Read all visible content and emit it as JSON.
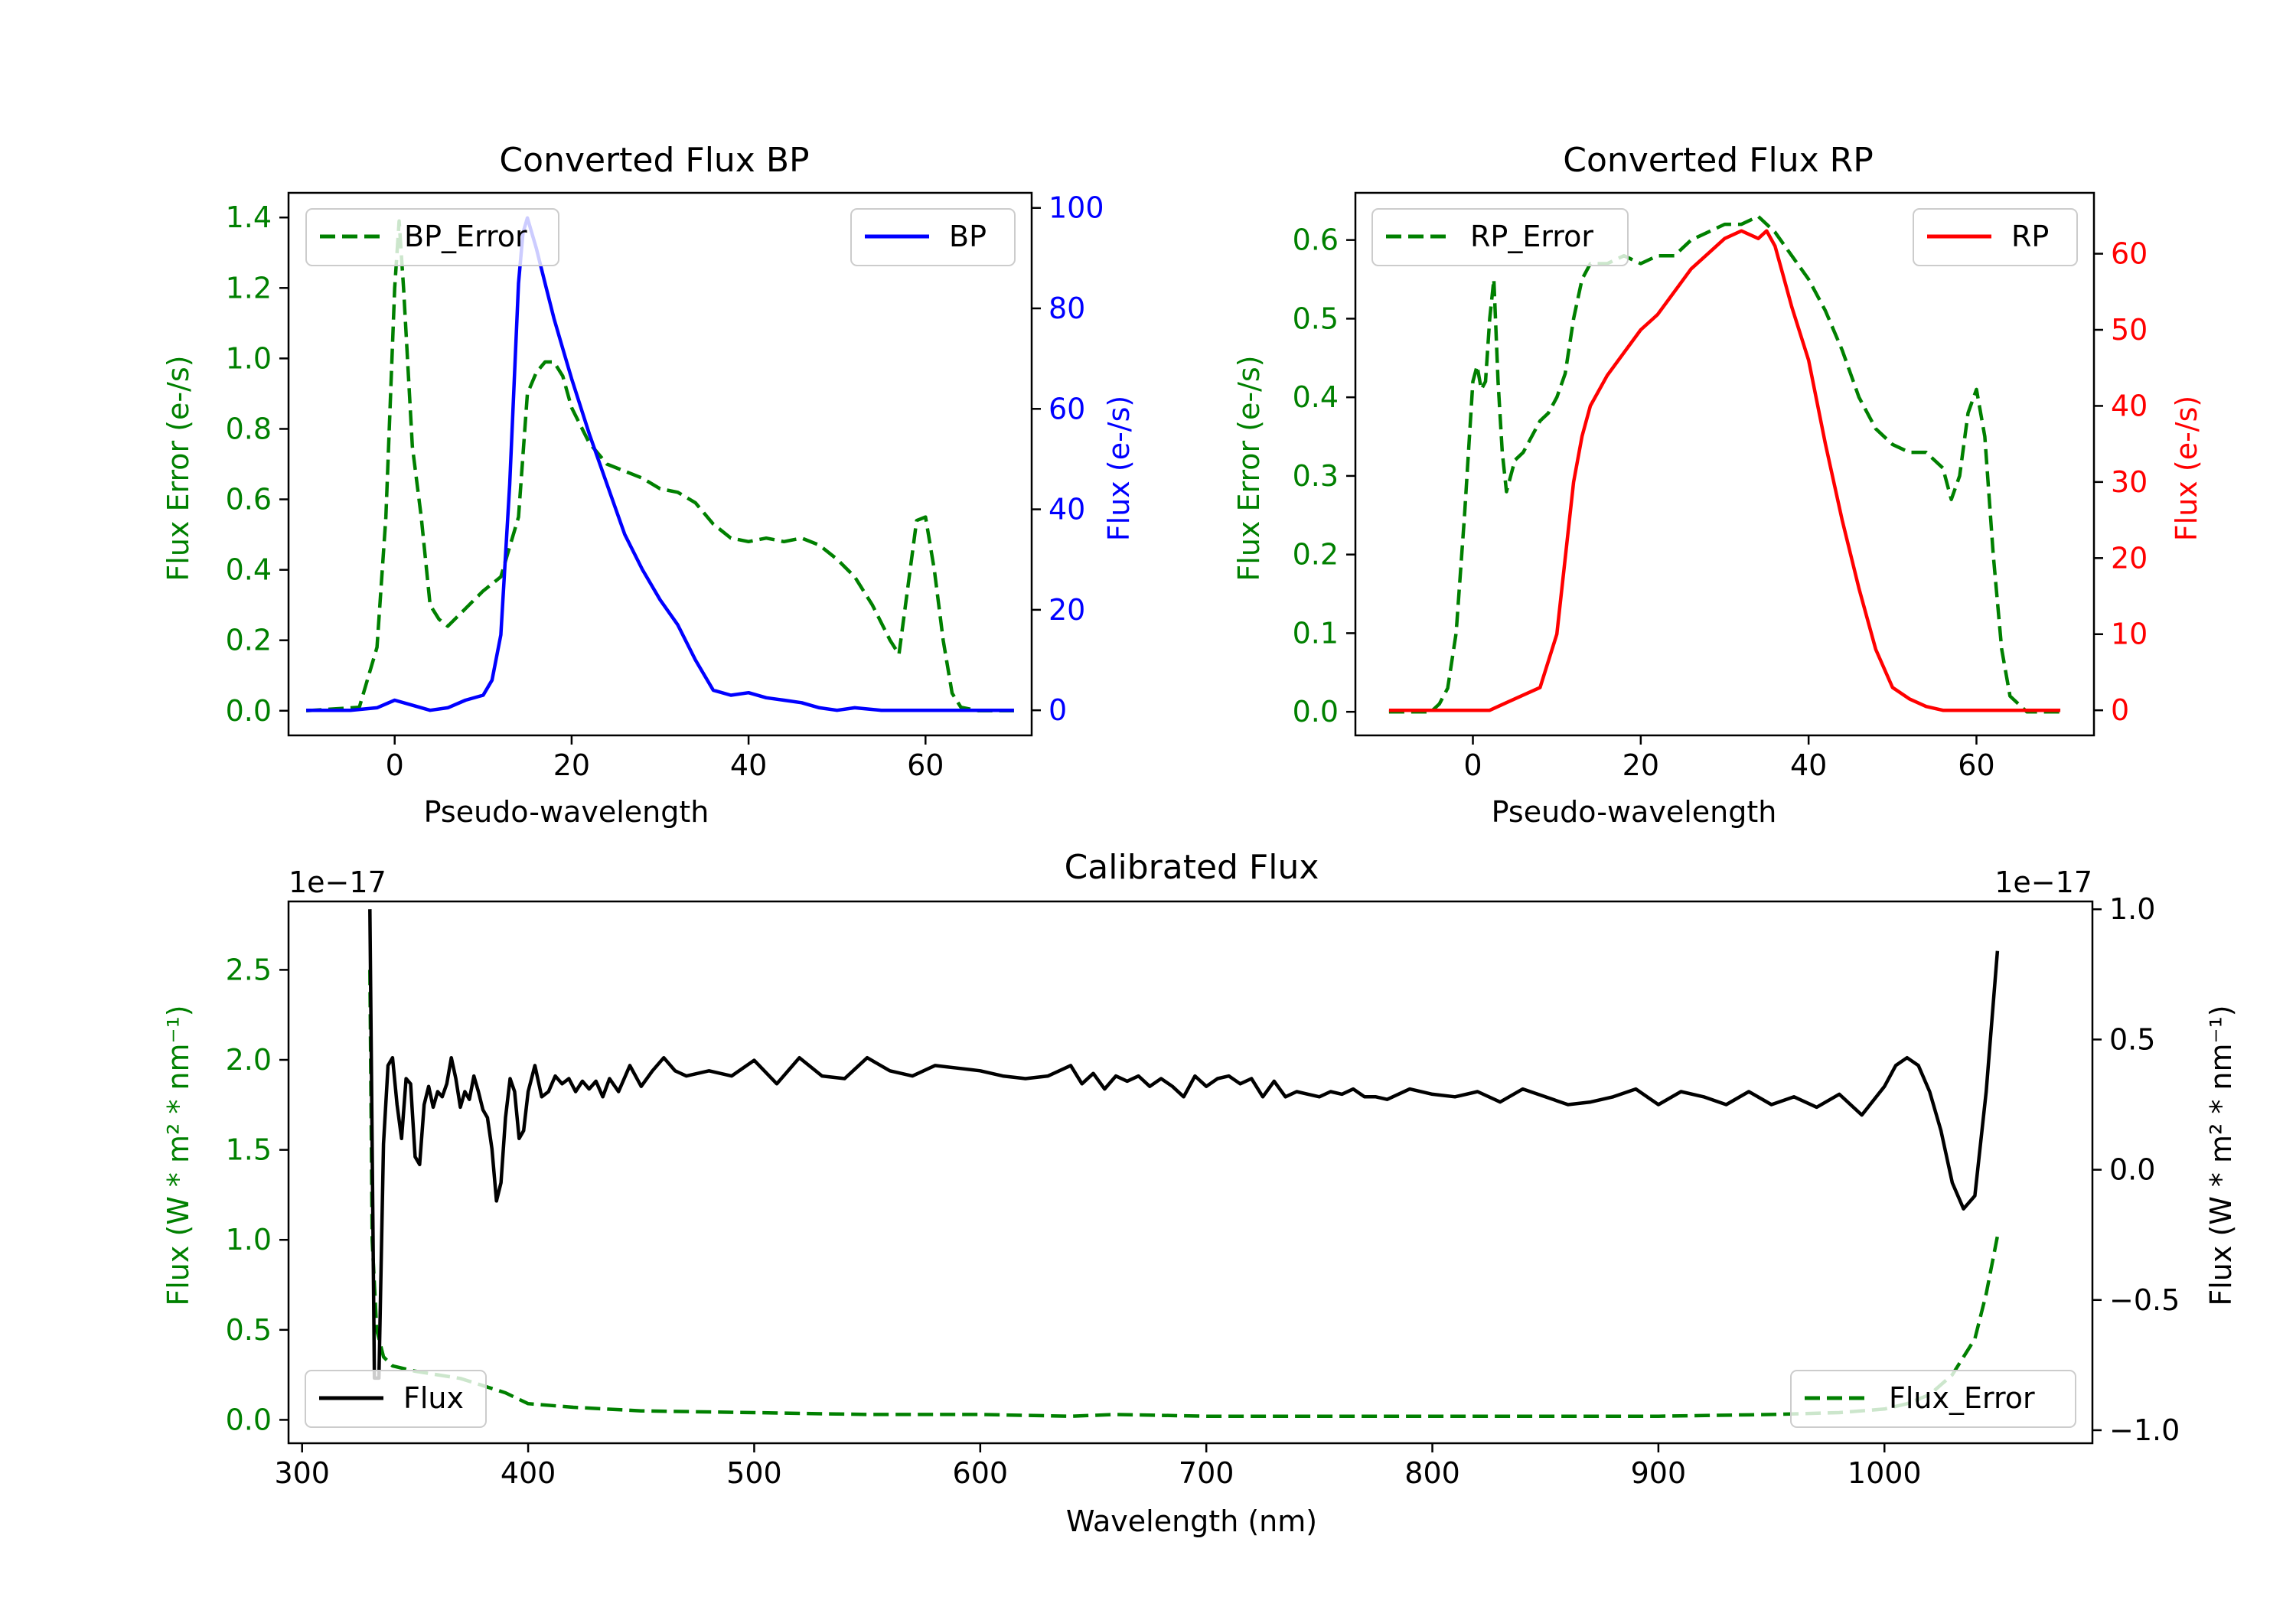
{
  "chart_data": [
    {
      "type": "line",
      "title": "Converted Flux BP",
      "xlabel": "Pseudo-wavelength",
      "xlim": [
        -12,
        72
      ],
      "xticks": [
        0,
        20,
        40,
        60
      ],
      "left_axis": {
        "label": "Flux Error (e-/s)",
        "color": "#008000",
        "ylim": [
          -0.07,
          1.47
        ],
        "ticks": [
          0.0,
          0.2,
          0.4,
          0.6,
          0.8,
          1.0,
          1.2,
          1.4
        ],
        "tick_labels": [
          "0.0",
          "0.2",
          "0.4",
          "0.6",
          "0.8",
          "1.0",
          "1.2",
          "1.4"
        ]
      },
      "right_axis": {
        "label": "Flux (e-/s)",
        "color": "#0000ff",
        "ylim": [
          -5,
          103
        ],
        "ticks": [
          0,
          20,
          40,
          60,
          80,
          100
        ],
        "tick_labels": [
          "0",
          "20",
          "40",
          "60",
          "80",
          "100"
        ]
      },
      "series": [
        {
          "name": "BP_Error",
          "axis": "left",
          "color": "#008000",
          "dashed": true,
          "x": [
            -10,
            -4,
            -2,
            -1,
            0,
            0.5,
            1,
            2,
            3,
            4,
            5,
            6,
            8,
            10,
            12,
            14,
            15,
            16,
            17,
            18,
            19,
            20,
            22,
            24,
            26,
            28,
            30,
            32,
            34,
            36,
            38,
            40,
            42,
            44,
            46,
            48,
            50,
            52,
            54,
            56,
            57,
            58,
            59,
            60,
            61,
            62,
            63,
            64,
            66,
            70
          ],
          "y": [
            0.0,
            0.01,
            0.18,
            0.55,
            1.2,
            1.39,
            1.2,
            0.75,
            0.55,
            0.3,
            0.26,
            0.24,
            0.29,
            0.34,
            0.38,
            0.55,
            0.9,
            0.96,
            0.99,
            0.99,
            0.95,
            0.86,
            0.76,
            0.7,
            0.68,
            0.66,
            0.63,
            0.62,
            0.59,
            0.53,
            0.49,
            0.48,
            0.49,
            0.48,
            0.49,
            0.47,
            0.43,
            0.38,
            0.3,
            0.2,
            0.16,
            0.35,
            0.54,
            0.55,
            0.4,
            0.2,
            0.05,
            0.01,
            0.0,
            0.0
          ]
        },
        {
          "name": "BP",
          "axis": "right",
          "color": "#0000ff",
          "dashed": false,
          "x": [
            -10,
            -5,
            -2,
            0,
            2,
            4,
            6,
            8,
            10,
            11,
            12,
            13,
            14,
            14.5,
            15,
            15.5,
            16,
            17,
            18,
            19,
            20,
            22,
            24,
            26,
            28,
            30,
            32,
            34,
            36,
            38,
            40,
            42,
            44,
            46,
            48,
            50,
            52,
            55,
            60,
            70
          ],
          "y": [
            0,
            0,
            0.5,
            2,
            1,
            0,
            0.5,
            2,
            3,
            6,
            15,
            45,
            85,
            95,
            98,
            95,
            92,
            85,
            78,
            72,
            66,
            55,
            45,
            35,
            28,
            22,
            17,
            10,
            4,
            3,
            3.5,
            2.5,
            2,
            1.5,
            0.5,
            0,
            0.5,
            0,
            0,
            0
          ]
        }
      ],
      "legends": [
        {
          "label": "BP_Error",
          "location": "upper left"
        },
        {
          "label": "BP",
          "location": "upper right"
        }
      ]
    },
    {
      "type": "line",
      "title": "Converted Flux RP",
      "xlabel": "Pseudo-wavelength",
      "xlim": [
        -14,
        74
      ],
      "xticks": [
        0,
        20,
        40,
        60
      ],
      "left_axis": {
        "label": "Flux Error (e-/s)",
        "color": "#008000",
        "ylim": [
          -0.03,
          0.66
        ],
        "ticks": [
          0.0,
          0.1,
          0.2,
          0.3,
          0.4,
          0.5,
          0.6
        ],
        "tick_labels": [
          "0.0",
          "0.1",
          "0.2",
          "0.3",
          "0.4",
          "0.5",
          "0.6"
        ]
      },
      "right_axis": {
        "label": "Flux (e-/s)",
        "color": "#ff0000",
        "ylim": [
          -3.3,
          68
        ],
        "ticks": [
          0,
          10,
          20,
          30,
          40,
          50,
          60
        ],
        "tick_labels": [
          "0",
          "10",
          "20",
          "30",
          "40",
          "50",
          "60"
        ]
      },
      "series": [
        {
          "name": "RP_Error",
          "axis": "left",
          "color": "#008000",
          "dashed": true,
          "x": [
            -10,
            -5,
            -4,
            -3,
            -2,
            -1,
            0,
            0.5,
            1,
            1.5,
            2,
            2.5,
            3,
            3.5,
            4,
            5,
            6,
            7,
            8,
            9,
            10,
            11,
            12,
            13,
            14,
            16,
            18,
            20,
            22,
            24,
            26,
            28,
            30,
            32,
            34,
            36,
            38,
            40,
            42,
            44,
            46,
            48,
            50,
            52,
            54,
            55,
            56,
            57,
            58,
            59,
            60,
            61,
            62,
            63,
            64,
            66,
            70
          ],
          "y": [
            0.0,
            0.0,
            0.01,
            0.03,
            0.1,
            0.25,
            0.42,
            0.44,
            0.41,
            0.42,
            0.5,
            0.55,
            0.42,
            0.33,
            0.28,
            0.32,
            0.33,
            0.35,
            0.37,
            0.38,
            0.4,
            0.43,
            0.5,
            0.55,
            0.57,
            0.57,
            0.58,
            0.57,
            0.58,
            0.58,
            0.6,
            0.61,
            0.62,
            0.62,
            0.63,
            0.61,
            0.58,
            0.55,
            0.51,
            0.46,
            0.4,
            0.36,
            0.34,
            0.33,
            0.33,
            0.32,
            0.31,
            0.27,
            0.3,
            0.38,
            0.41,
            0.35,
            0.2,
            0.08,
            0.02,
            0.0,
            0.0
          ]
        },
        {
          "name": "RP",
          "axis": "right",
          "color": "#ff0000",
          "dashed": false,
          "x": [
            -10,
            0,
            2,
            4,
            6,
            8,
            10,
            12,
            13,
            14,
            16,
            18,
            20,
            22,
            24,
            26,
            28,
            30,
            32,
            34,
            35,
            36,
            37,
            38,
            40,
            42,
            44,
            46,
            48,
            50,
            52,
            54,
            56,
            58,
            60,
            65,
            70
          ],
          "y": [
            0,
            0,
            0,
            1,
            2,
            3,
            10,
            30,
            36,
            40,
            44,
            47,
            50,
            52,
            55,
            58,
            60,
            62,
            63,
            62,
            63,
            61,
            57,
            53,
            46,
            35,
            25,
            16,
            8,
            3,
            1.5,
            0.5,
            0,
            0,
            0,
            0,
            0
          ]
        }
      ],
      "legends": [
        {
          "label": "RP_Error",
          "location": "upper left"
        },
        {
          "label": "RP",
          "location": "upper right"
        }
      ]
    },
    {
      "type": "line",
      "title": "Calibrated Flux",
      "xlabel": "Wavelength (nm)",
      "xlim": [
        294,
        1092
      ],
      "xticks": [
        300,
        400,
        500,
        600,
        700,
        800,
        900,
        1000
      ],
      "left_axis": {
        "label": "Flux (W * m² * nm⁻¹)",
        "color": "#008000",
        "offset_text": "1e−17",
        "ylim": [
          -0.13,
          2.88
        ],
        "ticks": [
          0.0,
          0.5,
          1.0,
          1.5,
          2.0,
          2.5
        ],
        "tick_labels": [
          "0.0",
          "0.5",
          "1.0",
          "1.5",
          "2.0",
          "2.5"
        ]
      },
      "right_axis": {
        "label": "Flux (W * m² * nm⁻¹)",
        "color": "#000000",
        "offset_text": "1e−17",
        "ylim": [
          -1.05,
          1.03
        ],
        "ticks": [
          -1.0,
          -0.5,
          0.0,
          0.5,
          1.0
        ],
        "tick_labels": [
          "−1.0",
          "−0.5",
          "0.0",
          "0.5",
          "1.0"
        ]
      },
      "series": [
        {
          "name": "Flux_Error",
          "axis": "left",
          "color": "#008000",
          "dashed": true,
          "x": [
            330,
            331,
            333,
            336,
            340,
            350,
            360,
            370,
            380,
            390,
            400,
            420,
            450,
            500,
            550,
            600,
            640,
            660,
            700,
            750,
            800,
            850,
            900,
            950,
            980,
            1000,
            1010,
            1020,
            1030,
            1040,
            1045,
            1050
          ],
          "y": [
            2.5,
            1.0,
            0.5,
            0.35,
            0.3,
            0.27,
            0.25,
            0.23,
            0.19,
            0.15,
            0.09,
            0.07,
            0.05,
            0.04,
            0.03,
            0.03,
            0.02,
            0.03,
            0.02,
            0.02,
            0.02,
            0.02,
            0.02,
            0.03,
            0.04,
            0.06,
            0.09,
            0.14,
            0.25,
            0.45,
            0.7,
            1.02
          ]
        },
        {
          "name": "Flux",
          "axis": "right",
          "color": "#000000",
          "dashed": false,
          "x": [
            330,
            332,
            334,
            336,
            338,
            340,
            342,
            344,
            346,
            348,
            350,
            352,
            354,
            356,
            358,
            360,
            362,
            364,
            366,
            368,
            370,
            372,
            374,
            376,
            378,
            380,
            382,
            384,
            386,
            388,
            390,
            392,
            394,
            396,
            398,
            400,
            403,
            406,
            409,
            412,
            415,
            418,
            421,
            424,
            427,
            430,
            433,
            436,
            440,
            445,
            450,
            455,
            460,
            465,
            470,
            480,
            490,
            500,
            510,
            520,
            530,
            540,
            550,
            560,
            570,
            580,
            590,
            600,
            610,
            620,
            630,
            640,
            645,
            650,
            655,
            660,
            665,
            670,
            675,
            680,
            685,
            690,
            695,
            700,
            705,
            710,
            715,
            720,
            725,
            730,
            735,
            740,
            745,
            750,
            755,
            760,
            765,
            770,
            775,
            780,
            790,
            800,
            810,
            820,
            830,
            840,
            850,
            860,
            870,
            880,
            890,
            900,
            910,
            920,
            930,
            940,
            950,
            960,
            970,
            980,
            990,
            1000,
            1005,
            1010,
            1015,
            1020,
            1025,
            1030,
            1035,
            1040,
            1045,
            1050
          ],
          "y": [
            1.0,
            -0.8,
            -0.8,
            0.1,
            0.4,
            0.43,
            0.25,
            0.12,
            0.35,
            0.33,
            0.05,
            0.02,
            0.25,
            0.32,
            0.24,
            0.3,
            0.28,
            0.33,
            0.43,
            0.35,
            0.24,
            0.3,
            0.27,
            0.36,
            0.3,
            0.23,
            0.2,
            0.08,
            -0.12,
            -0.05,
            0.2,
            0.35,
            0.3,
            0.12,
            0.15,
            0.3,
            0.4,
            0.28,
            0.3,
            0.36,
            0.33,
            0.35,
            0.3,
            0.34,
            0.31,
            0.34,
            0.28,
            0.35,
            0.3,
            0.4,
            0.32,
            0.38,
            0.43,
            0.38,
            0.36,
            0.38,
            0.36,
            0.42,
            0.33,
            0.43,
            0.36,
            0.35,
            0.43,
            0.38,
            0.36,
            0.4,
            0.39,
            0.38,
            0.36,
            0.35,
            0.36,
            0.4,
            0.33,
            0.37,
            0.31,
            0.36,
            0.34,
            0.36,
            0.32,
            0.35,
            0.32,
            0.28,
            0.36,
            0.32,
            0.35,
            0.36,
            0.33,
            0.35,
            0.28,
            0.34,
            0.28,
            0.3,
            0.29,
            0.28,
            0.3,
            0.29,
            0.31,
            0.28,
            0.28,
            0.27,
            0.31,
            0.29,
            0.28,
            0.3,
            0.26,
            0.31,
            0.28,
            0.25,
            0.26,
            0.28,
            0.31,
            0.25,
            0.3,
            0.28,
            0.25,
            0.3,
            0.25,
            0.28,
            0.24,
            0.29,
            0.21,
            0.32,
            0.4,
            0.43,
            0.4,
            0.3,
            0.15,
            -0.05,
            -0.15,
            -0.1,
            0.3,
            0.84
          ]
        }
      ],
      "legends": [
        {
          "label": "Flux",
          "location": "lower left"
        },
        {
          "label": "Flux_Error",
          "location": "lower right"
        }
      ]
    }
  ]
}
